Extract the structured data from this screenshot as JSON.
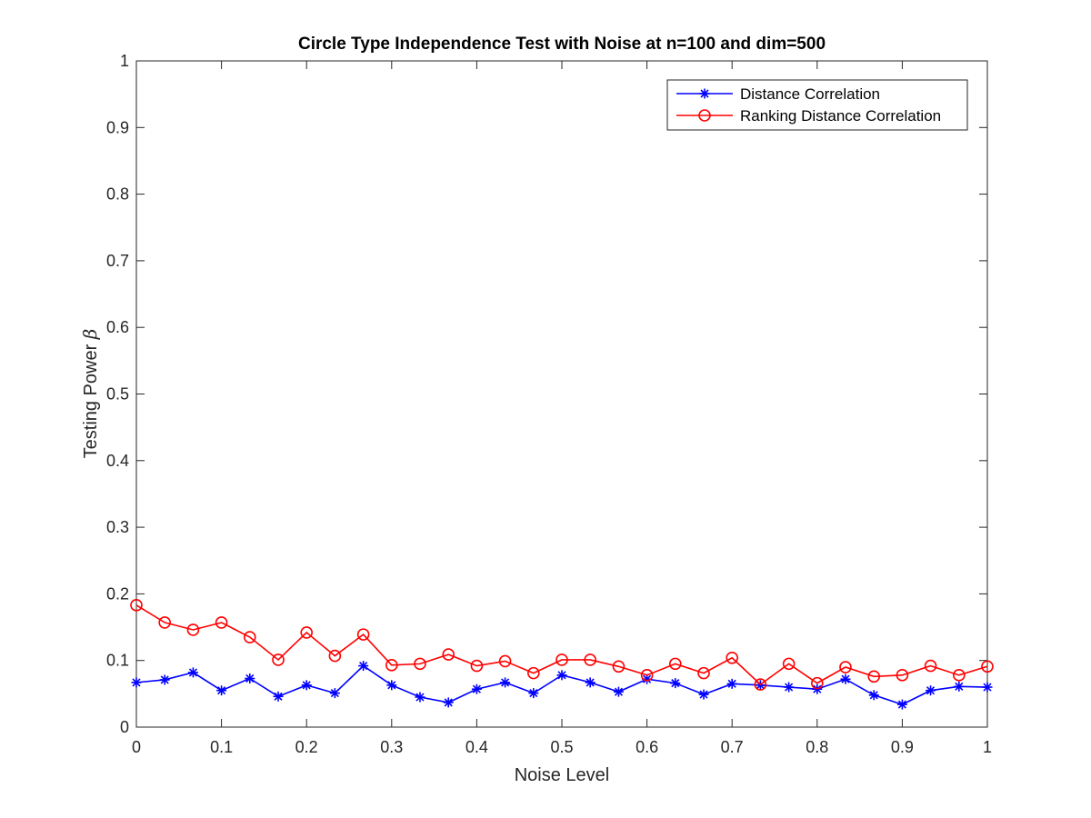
{
  "chart_data": {
    "type": "line",
    "title": "Circle Type Independence Test with Noise at n=100 and dim=500",
    "xlabel": "Noise Level",
    "ylabel": "Testing Power β",
    "xlim": [
      0,
      1
    ],
    "ylim": [
      0,
      1
    ],
    "grid": false,
    "legend_position": "top-right",
    "x_ticks": [
      "0",
      "0.1",
      "0.2",
      "0.3",
      "0.4",
      "0.5",
      "0.6",
      "0.7",
      "0.8",
      "0.9",
      "1"
    ],
    "y_ticks": [
      "0",
      "0.1",
      "0.2",
      "0.3",
      "0.4",
      "0.5",
      "0.6",
      "0.7",
      "0.8",
      "0.9",
      "1"
    ],
    "x": [
      0,
      0.0333,
      0.0667,
      0.1,
      0.1333,
      0.1667,
      0.2,
      0.2333,
      0.2667,
      0.3,
      0.3333,
      0.3667,
      0.4,
      0.4333,
      0.4667,
      0.5,
      0.5333,
      0.5667,
      0.6,
      0.6333,
      0.6667,
      0.7,
      0.7333,
      0.7667,
      0.8,
      0.8333,
      0.8667,
      0.9,
      0.9333,
      0.9667,
      1
    ],
    "series": [
      {
        "name": "Distance Correlation",
        "color": "#0000ff",
        "marker": "asterisk",
        "values": [
          0.067,
          0.071,
          0.082,
          0.055,
          0.073,
          0.046,
          0.063,
          0.051,
          0.092,
          0.063,
          0.045,
          0.037,
          0.057,
          0.067,
          0.051,
          0.078,
          0.067,
          0.053,
          0.072,
          0.066,
          0.049,
          0.065,
          0.063,
          0.06,
          0.057,
          0.072,
          0.048,
          0.034,
          0.055,
          0.061,
          0.06
        ]
      },
      {
        "name": "Ranking Distance Correlation",
        "color": "#ff0000",
        "marker": "circle",
        "values": [
          0.183,
          0.157,
          0.146,
          0.157,
          0.135,
          0.101,
          0.142,
          0.107,
          0.139,
          0.093,
          0.095,
          0.109,
          0.092,
          0.099,
          0.081,
          0.101,
          0.101,
          0.091,
          0.078,
          0.095,
          0.081,
          0.104,
          0.064,
          0.095,
          0.066,
          0.09,
          0.076,
          0.078,
          0.092,
          0.078,
          0.091
        ]
      }
    ]
  }
}
